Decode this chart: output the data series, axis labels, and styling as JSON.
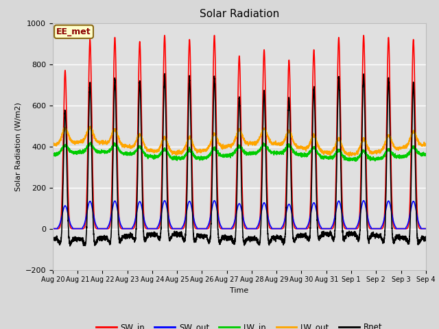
{
  "title": "Solar Radiation",
  "ylabel": "Solar Radiation (W/m2)",
  "xlabel": "Time",
  "ylim": [
    -200,
    1000
  ],
  "x_tick_labels": [
    "Aug 20",
    "Aug 21",
    "Aug 22",
    "Aug 23",
    "Aug 24",
    "Aug 25",
    "Aug 26",
    "Aug 27",
    "Aug 28",
    "Aug 29",
    "Aug 30",
    "Aug 31",
    "Sep 1",
    "Sep 2",
    "Sep 3",
    "Sep 4"
  ],
  "annotation": "EE_met",
  "plot_bg_color": "#e0e0e0",
  "fig_bg_color": "#d8d8d8",
  "series": {
    "SW_in": {
      "color": "#ff0000",
      "lw": 1.2
    },
    "SW_out": {
      "color": "#0000ff",
      "lw": 1.2
    },
    "LW_in": {
      "color": "#00cc00",
      "lw": 1.2
    },
    "LW_out": {
      "color": "#ffa500",
      "lw": 1.2
    },
    "Rnet": {
      "color": "#000000",
      "lw": 1.2
    }
  },
  "n_days": 15,
  "pts_per_day": 288,
  "SW_in_peak": 920,
  "LW_in_base": 355,
  "LW_out_base": 395,
  "Rnet_night": -70
}
